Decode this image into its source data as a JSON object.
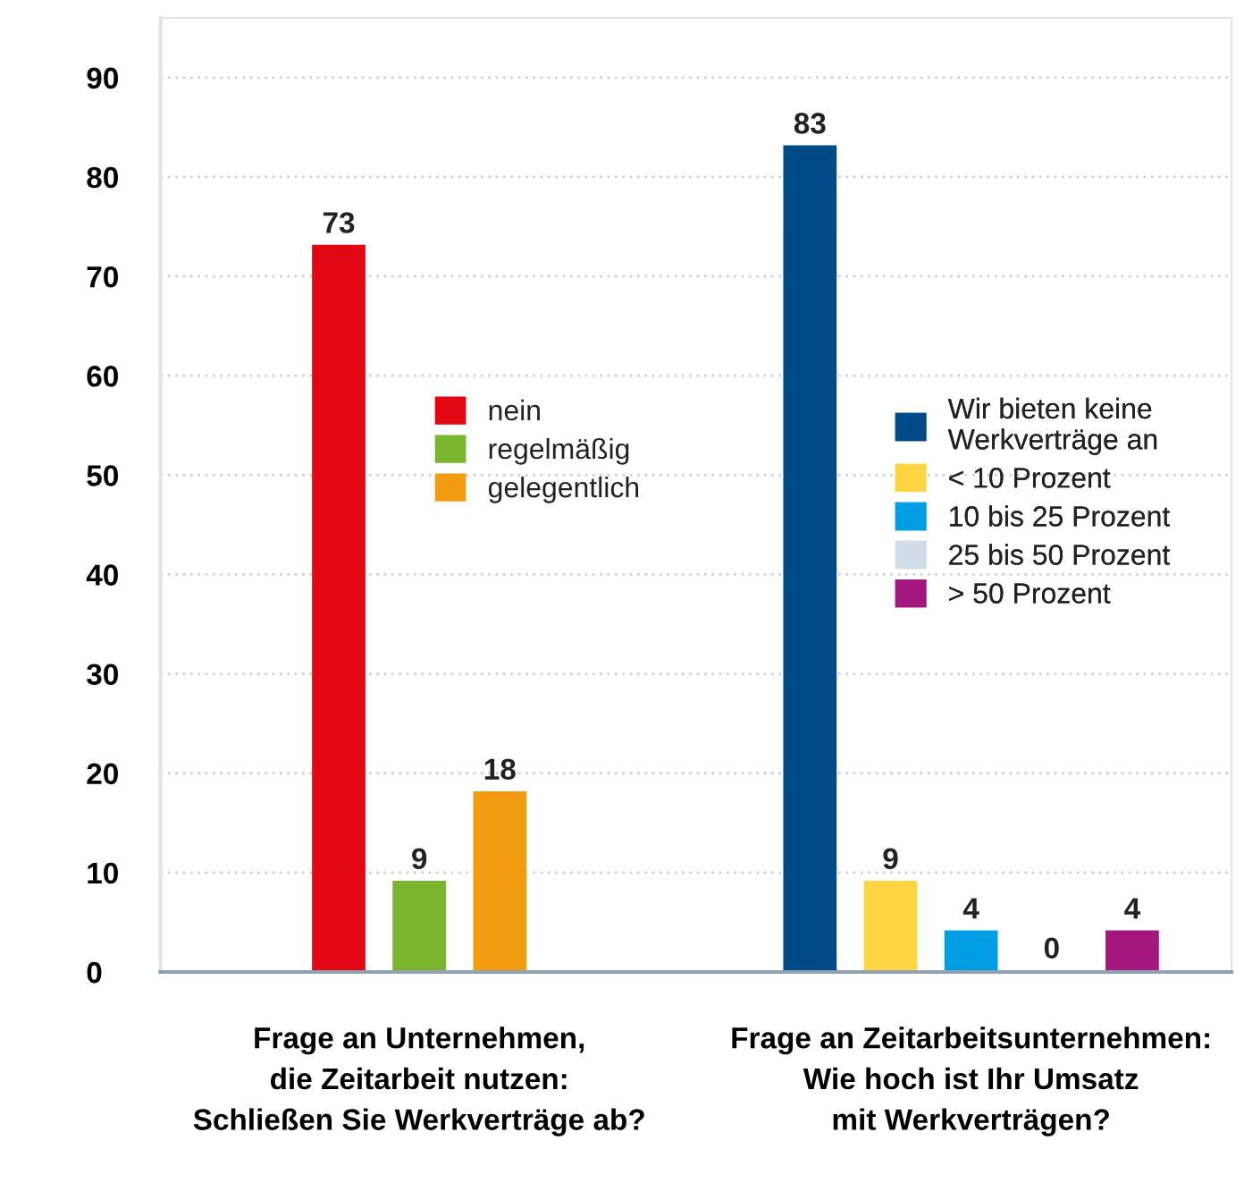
{
  "chart_data": {
    "type": "bar",
    "categories": [
      "Frage an Unternehmen,\ndie Zeitarbeit nutzen:\nSchließen Sie Werkverträge ab?",
      "Frage an Zeitarbeitsunternehmen:\nWie hoch ist Ihr Umsatz\nmit Werkverträgen?"
    ],
    "series": [
      {
        "name": "nein",
        "color": "#e30613",
        "values": [
          73,
          null
        ]
      },
      {
        "name": "regelmäßig",
        "color": "#7ab52e",
        "values": [
          9,
          null
        ]
      },
      {
        "name": "gelegentlich",
        "color": "#f39c12",
        "values": [
          18,
          null
        ]
      },
      {
        "name": "Wir bieten keine\nWerkverträge an",
        "color": "#004b87",
        "values": [
          null,
          83
        ]
      },
      {
        "name": "< 10 Prozent",
        "color": "#ffd642",
        "values": [
          null,
          9
        ]
      },
      {
        "name": "10 bis 25 Prozent",
        "color": "#009fe3",
        "values": [
          null,
          4
        ]
      },
      {
        "name": "25 bis 50 Prozent",
        "color": "#d0dce8",
        "values": [
          null,
          0
        ]
      },
      {
        "name": "> 50 Prozent",
        "color": "#a3177f",
        "values": [
          null,
          4
        ]
      }
    ],
    "ylim": [
      0,
      96
    ],
    "yticks": [
      0,
      10,
      20,
      30,
      40,
      50,
      60,
      70,
      80,
      90
    ],
    "grid": "y",
    "data_labels": true,
    "legend": "center"
  }
}
